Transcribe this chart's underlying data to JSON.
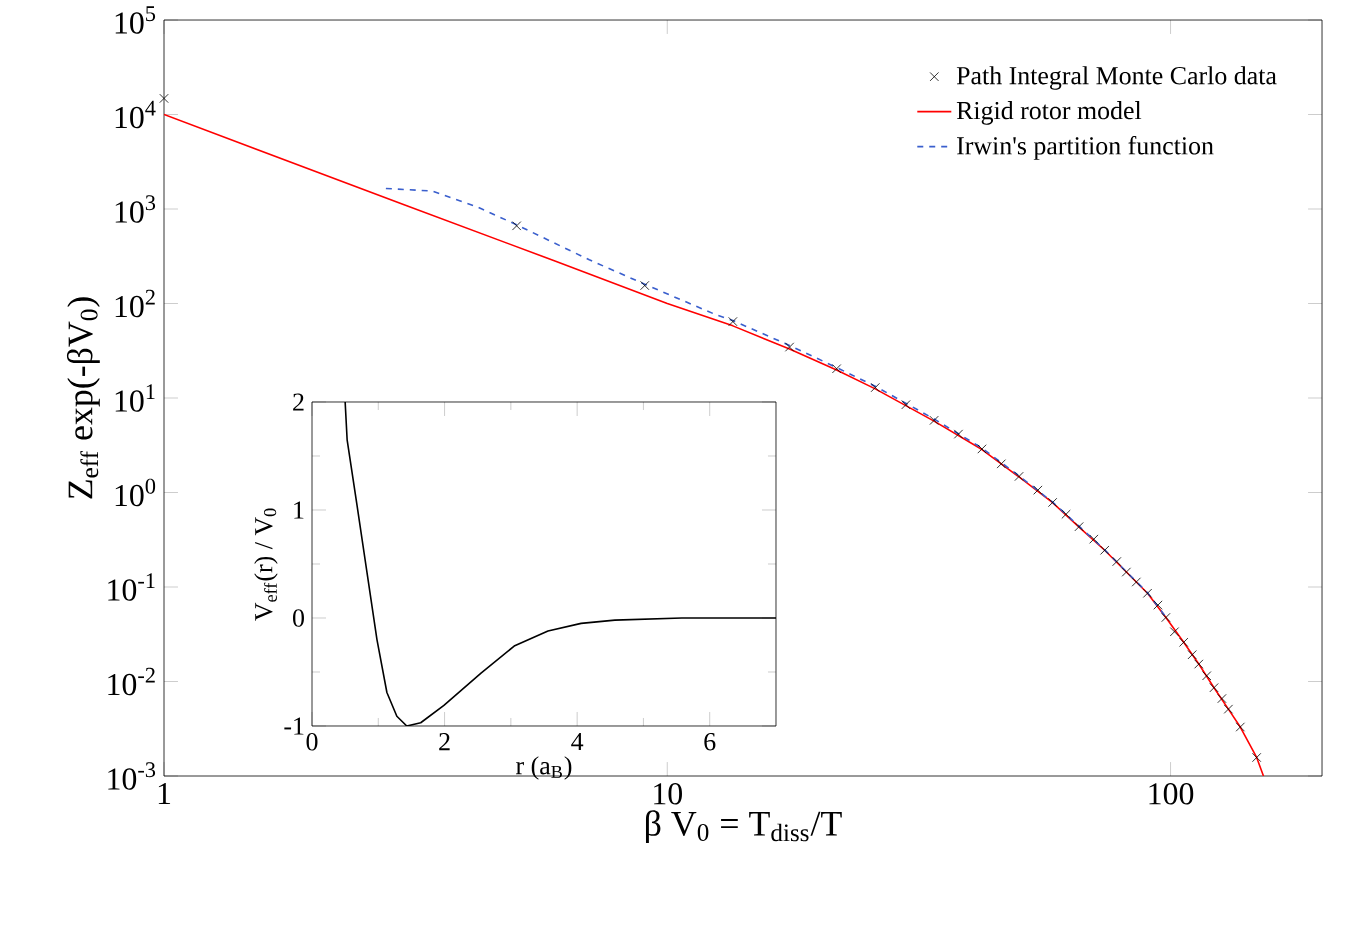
{
  "chart_data": [
    {
      "type": "line",
      "xlabel": "β V$_{0}$ = T$_{diss}$/T",
      "ylabel": "Z$_{eff}$ exp(-βV$_{0}$)",
      "log": "xy",
      "xlim": [
        1,
        200
      ],
      "ylim": [
        0.001,
        100000
      ],
      "xticks": [
        1,
        10,
        100
      ],
      "yticks": [
        {
          "value": 0.001,
          "label": "10$^{-3}$"
        },
        {
          "value": 0.01,
          "label": "10$^{-2}$"
        },
        {
          "value": 0.1,
          "label": "10$^{-1}$"
        },
        {
          "value": 1,
          "label": "10$^{0}$"
        },
        {
          "value": 10,
          "label": "10$^{1}$"
        },
        {
          "value": 100,
          "label": "10$^{2}$"
        },
        {
          "value": 1000,
          "label": "10$^{3}$"
        },
        {
          "value": 10000,
          "label": "10$^{4}$"
        },
        {
          "value": 100000,
          "label": "10$^{5}$"
        }
      ],
      "legend": "top right",
      "series": [
        {
          "name": "Path Integral Monte Carlo data",
          "type": "scatter",
          "marker": "cross",
          "color": "#000000",
          "x": [
            1,
            5.02,
            9.02,
            13.5,
            17.5,
            21.7,
            25.9,
            29.8,
            33.9,
            37.9,
            42.2,
            46.1,
            50,
            54.5,
            58.3,
            62,
            65.8,
            70.4,
            74,
            78.2,
            81.7,
            85.5,
            90,
            94.4,
            97.9,
            101.8,
            106.2,
            110.4,
            113.8,
            118,
            122,
            126.5,
            130.3,
            137.6,
            148.3
          ],
          "values": [
            14800,
            664,
            155,
            64.4,
            34.6,
            20.4,
            12.9,
            8.5,
            5.8,
            4.15,
            2.89,
            2.01,
            1.48,
            1.06,
            0.785,
            0.589,
            0.435,
            0.321,
            0.245,
            0.186,
            0.144,
            0.113,
            0.0859,
            0.0644,
            0.0476,
            0.0336,
            0.026,
            0.0192,
            0.0153,
            0.0115,
            0.0086,
            0.0066,
            0.0051,
            0.0033,
            0.00157
          ]
        },
        {
          "name": "Rigid rotor model",
          "type": "line",
          "marker": "none",
          "line_style": "solid",
          "color": "#ff0000",
          "x": [
            1,
            3,
            6,
            10,
            13.5,
            17.5,
            21.7,
            25.9,
            33.9,
            42.2,
            50,
            58.3,
            65.8,
            74,
            81.7,
            90,
            97.9,
            106.2,
            113.8,
            122,
            130.3,
            137.6,
            148.3,
            153
          ],
          "values": [
            10000,
            1110,
            280,
            100,
            58,
            33,
            19.8,
            12.5,
            5.7,
            2.85,
            1.46,
            0.78,
            0.43,
            0.245,
            0.144,
            0.086,
            0.0476,
            0.026,
            0.0153,
            0.0086,
            0.0051,
            0.0033,
            0.00157,
            0.001
          ]
        },
        {
          "name": "Irwin's partition function",
          "type": "line",
          "marker": "none",
          "line_style": "dashed",
          "color": "#3a5fcd",
          "x": [
            2.76,
            3.41,
            4.2,
            5.02,
            7,
            9.02,
            12.5,
            13.5,
            17.5,
            21.7,
            25.9,
            33.9,
            42.2,
            50,
            58.3,
            65.8,
            74,
            81.7,
            90,
            97.9
          ],
          "values": [
            1650,
            1550,
            1050,
            680,
            290,
            160,
            76,
            66,
            36,
            21,
            13.3,
            6,
            2.95,
            1.5,
            0.79,
            0.44,
            0.247,
            0.145,
            0.087,
            0.048
          ]
        }
      ]
    },
    {
      "type": "line",
      "xlabel": "r  (a$_{B}$)",
      "ylabel": "V$_{eff}$(r) / V$_{0}$",
      "xlim": [
        0,
        7
      ],
      "ylim": [
        -1,
        2
      ],
      "xticks": [
        0,
        {
          "value": 1,
          "label": null
        },
        2,
        {
          "value": 3,
          "label": null
        },
        4,
        {
          "value": 5,
          "label": null
        },
        6
      ],
      "yticks": [
        -1,
        {
          "value": -0.5,
          "label": null
        },
        0,
        {
          "value": 0.5,
          "label": null
        },
        1,
        {
          "value": 1.5,
          "label": null
        },
        2
      ],
      "series": [
        {
          "color": "#000000",
          "x": [
            0.5,
            0.53,
            0.68,
            0.83,
            0.98,
            1.13,
            1.28,
            1.43,
            1.64,
            1.99,
            2.55,
            3.05,
            3.56,
            4.06,
            4.57,
            5.58,
            6.79,
            7
          ],
          "values": [
            2.0,
            1.65,
            1.04,
            0.42,
            -0.2,
            -0.69,
            -0.91,
            -1.0,
            -0.97,
            -0.81,
            -0.51,
            -0.26,
            -0.12,
            -0.05,
            -0.02,
            0,
            0,
            0
          ]
        }
      ]
    }
  ]
}
